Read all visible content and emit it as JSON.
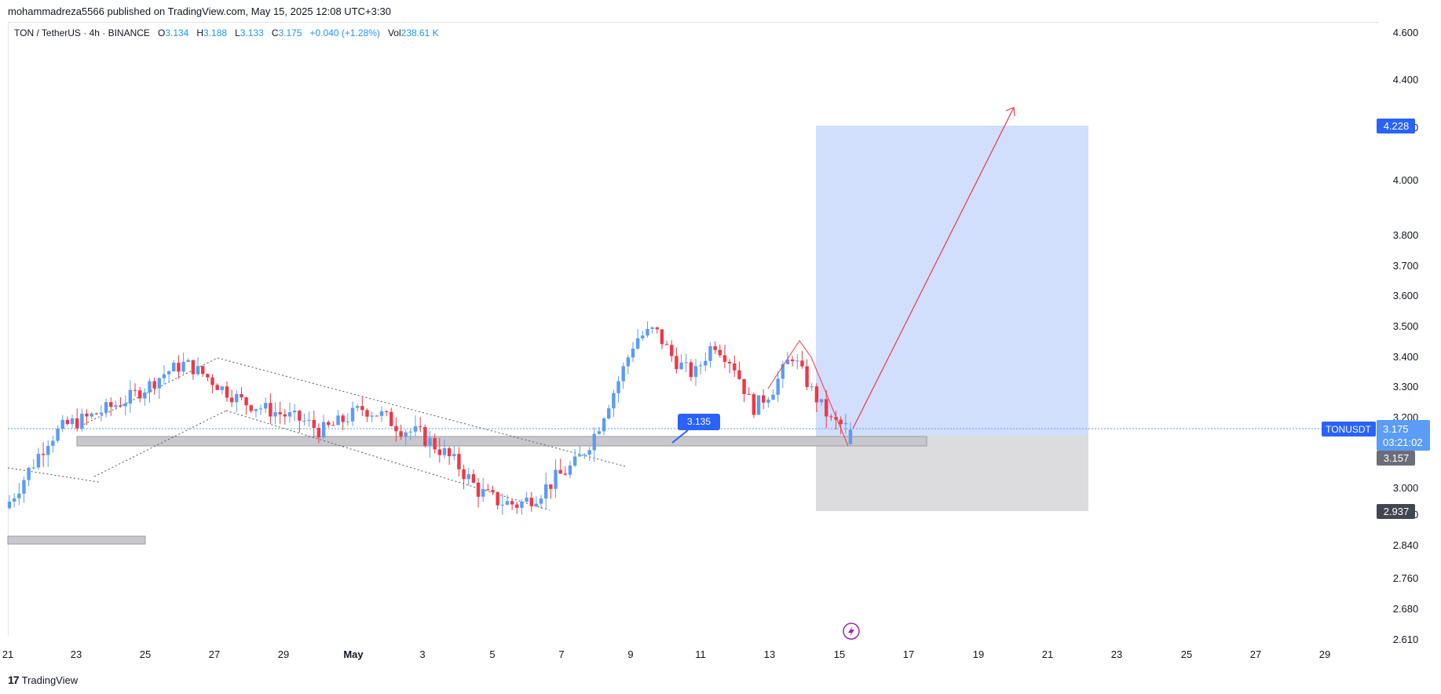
{
  "header": {
    "published": "mohammadreza5566 published on TradingView.com, May 15, 2025 12:08 UTC+3:30"
  },
  "legend": {
    "symbol": "TON / TetherUS · 4h · BINANCE",
    "open_label": "O",
    "open": "3.134",
    "high_label": "H",
    "high": "3.188",
    "low_label": "L",
    "low": "3.133",
    "close_label": "C",
    "close": "3.175",
    "change": "+0.040 (+1.28%)",
    "vol_label": "Vol",
    "vol": "238.61 K"
  },
  "price_axis": {
    "ticks": [
      "4.600",
      "4.400",
      "4.200",
      "4.000",
      "3.800",
      "3.700",
      "3.600",
      "3.500",
      "3.400",
      "3.300",
      "3.200",
      "3.000",
      "2.920",
      "2.840",
      "2.760",
      "2.680",
      "2.610"
    ],
    "labels": {
      "target": "4.228",
      "last_symbol": "TONUSDT",
      "last_price": "3.175",
      "countdown": "03:21:02",
      "entry": "3.157",
      "stop": "2.937"
    }
  },
  "time_axis": {
    "ticks": [
      "21",
      "23",
      "25",
      "27",
      "29",
      "May",
      "3",
      "5",
      "7",
      "9",
      "11",
      "13",
      "15",
      "17",
      "19",
      "21",
      "23",
      "25",
      "27",
      "29"
    ]
  },
  "annotations": {
    "callout": "3.135"
  },
  "colors": {
    "up": "#5b9cf6",
    "down": "#f23645",
    "target_zone": "#c9d8fb",
    "stop_zone": "#dcdcdf",
    "accent": "#2962ff"
  },
  "chart_data": {
    "type": "candlestick",
    "symbol": "TON / TetherUS",
    "interval": "4h",
    "exchange": "BINANCE",
    "last_candle": {
      "open": 3.134,
      "high": 3.188,
      "low": 3.133,
      "close": 3.175
    },
    "y_range": [
      2.58,
      4.7
    ],
    "key_levels": {
      "target": 4.228,
      "entry": 3.157,
      "stop": 2.937,
      "last": 3.175,
      "callout": 3.135
    },
    "trend_path_closes": [
      2.97,
      3.06,
      3.15,
      3.19,
      3.21,
      3.24,
      3.27,
      3.31,
      3.36,
      3.39,
      3.35,
      3.3,
      3.26,
      3.24,
      3.22,
      3.2,
      3.17,
      3.2,
      3.24,
      3.22,
      3.18,
      3.16,
      3.12,
      3.07,
      3.0,
      2.97,
      2.96,
      2.99,
      3.04,
      3.08,
      3.17,
      3.31,
      3.47,
      3.5,
      3.4,
      3.35,
      3.46,
      3.39,
      3.24,
      3.3,
      3.42,
      3.3,
      3.2,
      3.175
    ]
  }
}
